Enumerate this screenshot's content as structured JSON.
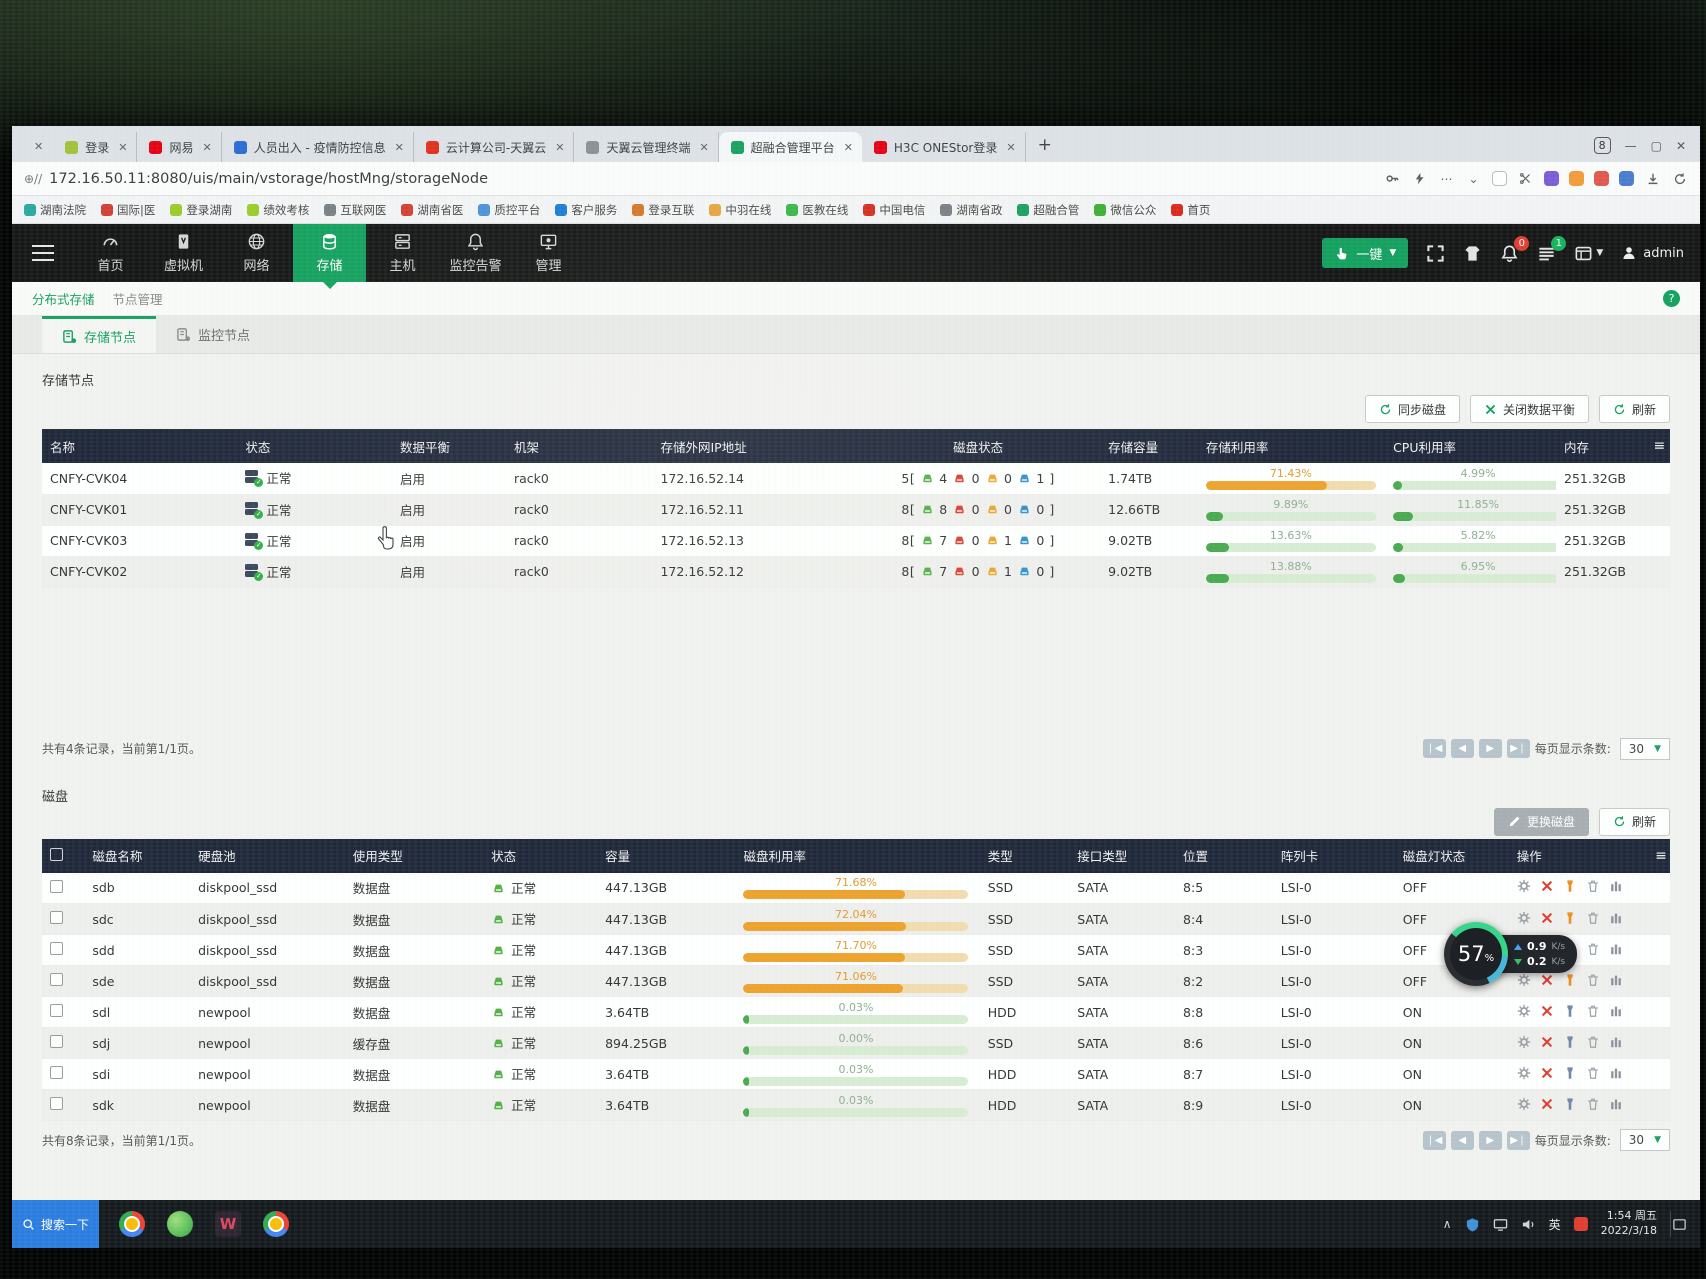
{
  "browser": {
    "tabs": [
      {
        "label": "登录",
        "color": "#a3c13a"
      },
      {
        "label": "网易",
        "color": "#e60012"
      },
      {
        "label": "人员出入 - 疫情防控信息",
        "color": "#2b6bd4"
      },
      {
        "label": "云计算公司-天翼云",
        "color": "#e0301e"
      },
      {
        "label": "天翼云管理终端",
        "color": "#8a8f95"
      },
      {
        "label": "超融合管理平台",
        "color": "#18a060",
        "active": true
      },
      {
        "label": "H3C ONEStor登录",
        "color": "#e60012"
      }
    ],
    "tab_count": "8",
    "url": "172.16.50.11:8080/uis/main/vstorage/hostMng/storageNode",
    "bookmarks": [
      {
        "label": "湖南法院",
        "color": "#2aa9a0"
      },
      {
        "label": "国际|医",
        "color": "#d43d33"
      },
      {
        "label": "登录湖南",
        "color": "#9ccc2a"
      },
      {
        "label": "绩效考核",
        "color": "#9ccc2a"
      },
      {
        "label": "互联网医",
        "color": "#7a7f84"
      },
      {
        "label": "湖南省医",
        "color": "#d43d33"
      },
      {
        "label": "质控平台",
        "color": "#4a90d9"
      },
      {
        "label": "客户服务",
        "color": "#1a7bd4"
      },
      {
        "label": "登录互联",
        "color": "#d4762a"
      },
      {
        "label": "中羽在线",
        "color": "#e8a33d"
      },
      {
        "label": "医教在线",
        "color": "#3ab54a"
      },
      {
        "label": "中国电信",
        "color": "#d9291c"
      },
      {
        "label": "湖南省政",
        "color": "#7a7f84"
      },
      {
        "label": "超融合管",
        "color": "#18a060"
      },
      {
        "label": "微信公众",
        "color": "#3cb034"
      },
      {
        "label": "首页",
        "color": "#d9291c"
      }
    ]
  },
  "nav": {
    "items": [
      {
        "label": "首页",
        "icon": "gauge"
      },
      {
        "label": "虚拟机",
        "icon": "vm"
      },
      {
        "label": "网络",
        "icon": "globe"
      },
      {
        "label": "存储",
        "icon": "storage",
        "active": true
      },
      {
        "label": "主机",
        "icon": "host"
      },
      {
        "label": "监控告警",
        "icon": "bell"
      },
      {
        "label": "管理",
        "icon": "monitor"
      }
    ],
    "quick_label": "一键",
    "alarm_badge": "0",
    "task_badge": "1",
    "user": "admin"
  },
  "breadcrumb": {
    "items": [
      "分布式存储",
      "节点管理"
    ]
  },
  "page_tabs": [
    {
      "label": "存储节点",
      "active": true
    },
    {
      "label": "监控节点"
    }
  ],
  "storage": {
    "title": "存储节点",
    "buttons": [
      {
        "label": "同步磁盘",
        "icon": "sync"
      },
      {
        "label": "关闭数据平衡",
        "icon": "xmark"
      },
      {
        "label": "刷新",
        "icon": "refresh"
      }
    ],
    "columns": [
      "名称",
      "状态",
      "数据平衡",
      "机架",
      "存储外网IP地址",
      "磁盘状态",
      "存储容量",
      "存储利用率",
      "CPU利用率",
      "内存"
    ],
    "rows": [
      {
        "name": "CNFY-CVK04",
        "status": "正常",
        "balance": "启用",
        "rack": "rack0",
        "ip": "172.16.52.14",
        "disk_total": "5",
        "disk_counts": [
          "4",
          "0",
          "0",
          "1"
        ],
        "capacity": "1.74TB",
        "storage_util": 71.43,
        "cpu_util": 4.99,
        "memory": "251.32GB"
      },
      {
        "name": "CNFY-CVK01",
        "status": "正常",
        "balance": "启用",
        "rack": "rack0",
        "ip": "172.16.52.11",
        "disk_total": "8",
        "disk_counts": [
          "8",
          "0",
          "0",
          "0"
        ],
        "capacity": "12.66TB",
        "storage_util": 9.89,
        "cpu_util": 11.85,
        "memory": "251.32GB"
      },
      {
        "name": "CNFY-CVK03",
        "status": "正常",
        "balance": "启用",
        "rack": "rack0",
        "ip": "172.16.52.13",
        "disk_total": "8",
        "disk_counts": [
          "7",
          "0",
          "1",
          "0"
        ],
        "capacity": "9.02TB",
        "storage_util": 13.63,
        "cpu_util": 5.82,
        "memory": "251.32GB"
      },
      {
        "name": "CNFY-CVK02",
        "status": "正常",
        "balance": "启用",
        "rack": "rack0",
        "ip": "172.16.52.12",
        "disk_total": "8",
        "disk_counts": [
          "7",
          "0",
          "1",
          "0"
        ],
        "capacity": "9.02TB",
        "storage_util": 13.88,
        "cpu_util": 6.95,
        "memory": "251.32GB"
      }
    ],
    "summary": "共有4条记录，当前第1/1页。",
    "page_size_label": "每页显示条数:",
    "page_size": "30"
  },
  "speed_widget": {
    "percent": "57",
    "unit": "%",
    "up_rate": "0.9",
    "down_rate": "0.2",
    "rate_unit": "K/s"
  },
  "disks": {
    "title": "磁盘",
    "buttons": [
      {
        "label": "更换磁盘",
        "icon": "pencil",
        "style": "grey"
      },
      {
        "label": "刷新",
        "icon": "refresh"
      }
    ],
    "columns": [
      "磁盘名称",
      "硬盘池",
      "使用类型",
      "状态",
      "容量",
      "磁盘利用率",
      "类型",
      "接口类型",
      "位置",
      "阵列卡",
      "磁盘灯状态",
      "操作"
    ],
    "rows": [
      {
        "name": "sdb",
        "pool": "diskpool_ssd",
        "use": "数据盘",
        "status": "正常",
        "capacity": "447.13GB",
        "util": 71.68,
        "type": "SSD",
        "iface": "SATA",
        "pos": "8:5",
        "raid": "LSI-0",
        "led": "OFF"
      },
      {
        "name": "sdc",
        "pool": "diskpool_ssd",
        "use": "数据盘",
        "status": "正常",
        "capacity": "447.13GB",
        "util": 72.04,
        "type": "SSD",
        "iface": "SATA",
        "pos": "8:4",
        "raid": "LSI-0",
        "led": "OFF"
      },
      {
        "name": "sdd",
        "pool": "diskpool_ssd",
        "use": "数据盘",
        "status": "正常",
        "capacity": "447.13GB",
        "util": 71.7,
        "type": "SSD",
        "iface": "SATA",
        "pos": "8:3",
        "raid": "LSI-0",
        "led": "OFF"
      },
      {
        "name": "sde",
        "pool": "diskpool_ssd",
        "use": "数据盘",
        "status": "正常",
        "capacity": "447.13GB",
        "util": 71.06,
        "type": "SSD",
        "iface": "SATA",
        "pos": "8:2",
        "raid": "LSI-0",
        "led": "OFF"
      },
      {
        "name": "sdl",
        "pool": "newpool",
        "use": "数据盘",
        "status": "正常",
        "capacity": "3.64TB",
        "util": 0.03,
        "type": "HDD",
        "iface": "SATA",
        "pos": "8:8",
        "raid": "LSI-0",
        "led": "ON"
      },
      {
        "name": "sdj",
        "pool": "newpool",
        "use": "缓存盘",
        "status": "正常",
        "capacity": "894.25GB",
        "util": 0.0,
        "type": "SSD",
        "iface": "SATA",
        "pos": "8:6",
        "raid": "LSI-0",
        "led": "ON"
      },
      {
        "name": "sdi",
        "pool": "newpool",
        "use": "数据盘",
        "status": "正常",
        "capacity": "3.64TB",
        "util": 0.03,
        "type": "HDD",
        "iface": "SATA",
        "pos": "8:7",
        "raid": "LSI-0",
        "led": "ON"
      },
      {
        "name": "sdk",
        "pool": "newpool",
        "use": "数据盘",
        "status": "正常",
        "capacity": "3.64TB",
        "util": 0.03,
        "type": "HDD",
        "iface": "SATA",
        "pos": "8:9",
        "raid": "LSI-0",
        "led": "ON"
      }
    ],
    "summary": "共有8条记录，当前第1/1页。",
    "page_size_label": "每页显示条数:",
    "page_size": "30"
  },
  "taskbar": {
    "search": "搜索一下",
    "lang": "英",
    "time": "1:54 周五",
    "date": "2022/3/18"
  },
  "colors": {
    "green": "#14a05e",
    "orange": "#efa22b",
    "red": "#e03b2f",
    "blue": "#2f8fd0",
    "disk_green": "#52b043"
  }
}
